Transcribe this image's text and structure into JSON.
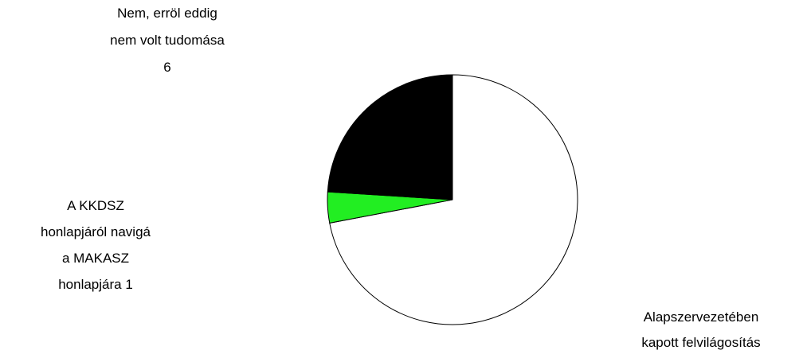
{
  "chart_data": {
    "type": "pie",
    "categories": [
      "Alapszervezetében\nkapott felvilágosítás",
      "A KKDSZ\nhonlapjáról navigá\na MAKASZ\nhonlapjára",
      "Nem, erröl eddig\nnem volt tudomása"
    ],
    "values": [
      18,
      1,
      6
    ],
    "colors": [
      "#ffffff",
      "#22ee22",
      "#000000"
    ]
  }
}
